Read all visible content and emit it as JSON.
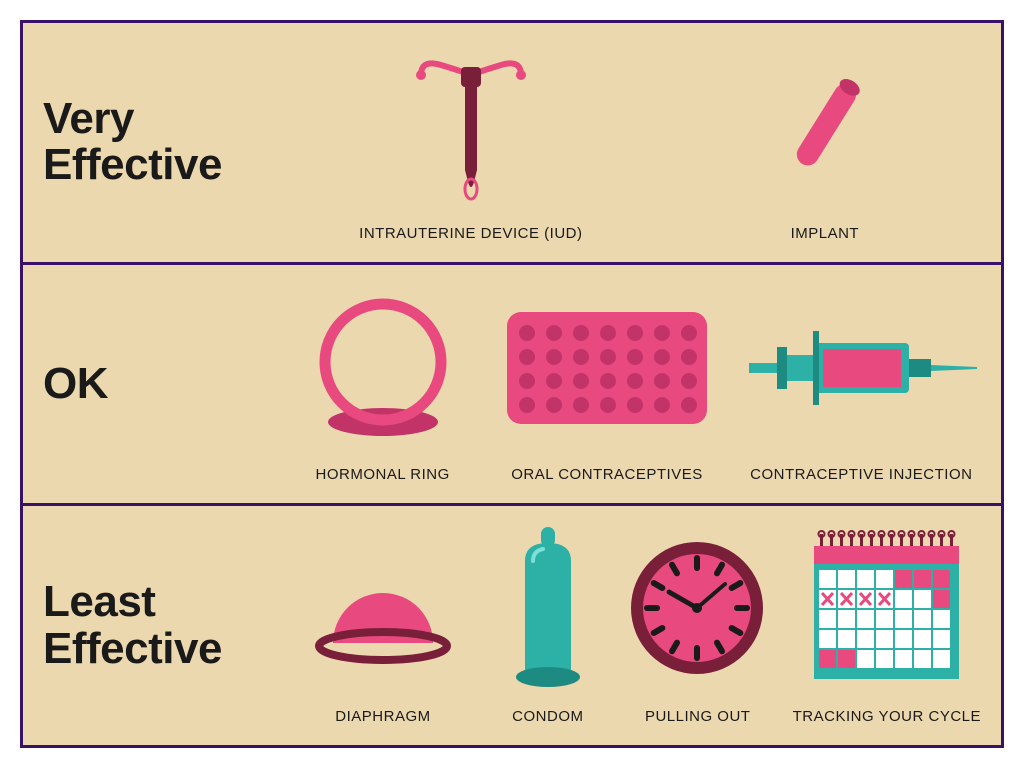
{
  "colors": {
    "border": "#3a1168",
    "bg": "#ecd8ae",
    "text": "#1a1a1a",
    "pink": "#e84a7f",
    "darkRed": "#7a1f3a",
    "maroon": "#8b1e3f",
    "teal": "#2db0a5",
    "tealDark": "#1e8b82",
    "white": "#ffffff"
  },
  "rowLabelFontSize": 44,
  "rows": [
    {
      "label": "Very\nEffective",
      "items": [
        {
          "key": "iud",
          "label": "INTRAUTERINE DEVICE (IUD)"
        },
        {
          "key": "implant",
          "label": "IMPLANT"
        }
      ]
    },
    {
      "label": "OK",
      "items": [
        {
          "key": "ring",
          "label": "HORMONAL RING"
        },
        {
          "key": "pills",
          "label": "ORAL CONTRACEPTIVES"
        },
        {
          "key": "injection",
          "label": "CONTRACEPTIVE INJECTION"
        }
      ]
    },
    {
      "label": "Least\nEffective",
      "items": [
        {
          "key": "diaphragm",
          "label": "DIAPHRAGM"
        },
        {
          "key": "condom",
          "label": "CONDOM"
        },
        {
          "key": "clock",
          "label": "PULLING OUT"
        },
        {
          "key": "calendar",
          "label": "TRACKING YOUR CYCLE"
        }
      ]
    }
  ]
}
